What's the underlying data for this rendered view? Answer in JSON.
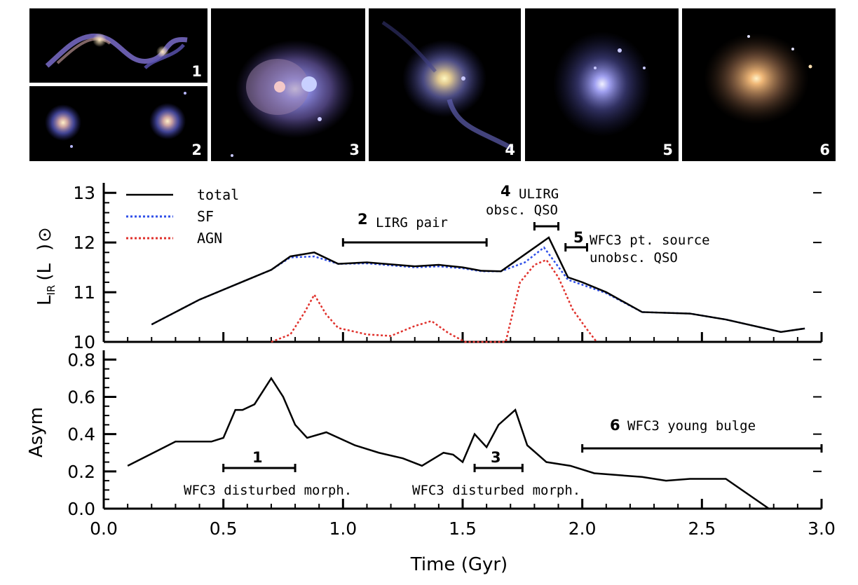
{
  "panels": [
    {
      "label": "1"
    },
    {
      "label": "2"
    },
    {
      "label": "3"
    },
    {
      "label": "4"
    },
    {
      "label": "5"
    },
    {
      "label": "6"
    }
  ],
  "colors": {
    "total": "#000000",
    "sf": "#2f4fe8",
    "agn": "#e0312c"
  },
  "chart_data": [
    {
      "type": "line",
      "ylabel": "L_IR (L_sun)",
      "ylabel_main": "L",
      "ylabel_sub": "IR",
      "ylabel_unit_open": "(L",
      "ylabel_unit_close": ")",
      "xlim": [
        0.0,
        3.0
      ],
      "ylim": [
        10.0,
        13.2
      ],
      "yticks": [
        "10",
        "11",
        "12",
        "13"
      ],
      "legend": [
        "total",
        "SF",
        "AGN"
      ],
      "series": [
        {
          "name": "total",
          "x": [
            0.2,
            0.3,
            0.4,
            0.5,
            0.6,
            0.7,
            0.78,
            0.88,
            0.98,
            1.1,
            1.3,
            1.4,
            1.5,
            1.58,
            1.66,
            1.86,
            1.94,
            2.0,
            2.1,
            2.25,
            2.45,
            2.6,
            2.83,
            2.93
          ],
          "y": [
            10.35,
            10.6,
            10.85,
            11.05,
            11.25,
            11.45,
            11.72,
            11.8,
            11.57,
            11.6,
            11.52,
            11.55,
            11.5,
            11.43,
            11.42,
            12.1,
            11.3,
            11.2,
            11.0,
            10.6,
            10.57,
            10.45,
            10.2,
            10.27
          ]
        },
        {
          "name": "SF",
          "x": [
            0.2,
            0.3,
            0.4,
            0.5,
            0.6,
            0.7,
            0.78,
            0.88,
            0.98,
            1.1,
            1.3,
            1.4,
            1.5,
            1.58,
            1.66,
            1.76,
            1.84,
            1.94,
            2.0,
            2.1,
            2.25,
            2.45,
            2.6,
            2.83,
            2.93
          ],
          "y": [
            10.35,
            10.6,
            10.85,
            11.05,
            11.25,
            11.45,
            11.7,
            11.72,
            11.57,
            11.58,
            11.5,
            11.52,
            11.48,
            11.42,
            11.42,
            11.6,
            11.9,
            11.25,
            11.15,
            10.98,
            10.6,
            10.57,
            10.45,
            10.2,
            10.27
          ]
        },
        {
          "name": "AGN",
          "x": [
            0.7,
            0.78,
            0.84,
            0.88,
            0.93,
            0.98,
            1.1,
            1.2,
            1.3,
            1.37,
            1.44,
            1.51,
            1.68,
            1.74,
            1.8,
            1.85,
            1.9,
            1.96,
            2.02,
            2.06
          ],
          "y": [
            10.0,
            10.15,
            10.6,
            10.95,
            10.55,
            10.28,
            10.15,
            10.12,
            10.32,
            10.42,
            10.18,
            10.0,
            10.0,
            11.2,
            11.55,
            11.65,
            11.3,
            10.65,
            10.25,
            10.0
          ]
        }
      ],
      "annotations": [
        {
          "num": "2",
          "text": "LIRG pair",
          "range": [
            1.0,
            1.6
          ]
        },
        {
          "num": "4",
          "text": "ULIRG",
          "text2": "obsc. QSO",
          "range": [
            1.8,
            1.9
          ]
        },
        {
          "num": "5",
          "text": "WFC3 pt. source",
          "text2": "unobsc. QSO",
          "range": [
            1.93,
            2.02
          ]
        }
      ]
    },
    {
      "type": "line",
      "ylabel": "Asym",
      "xlabel": "Time (Gyr)",
      "xlim": [
        0.0,
        3.0
      ],
      "ylim": [
        0.0,
        0.85
      ],
      "yticks": [
        "0.0",
        "0.2",
        "0.4",
        "0.6",
        "0.8"
      ],
      "xticks": [
        "0.0",
        "0.5",
        "1.0",
        "1.5",
        "2.0",
        "2.5",
        "3.0"
      ],
      "series": [
        {
          "name": "Asym",
          "x": [
            0.1,
            0.3,
            0.45,
            0.5,
            0.55,
            0.58,
            0.63,
            0.7,
            0.75,
            0.8,
            0.85,
            0.93,
            1.05,
            1.15,
            1.25,
            1.33,
            1.42,
            1.46,
            1.5,
            1.55,
            1.6,
            1.65,
            1.72,
            1.77,
            1.85,
            1.95,
            2.05,
            2.15,
            2.25,
            2.35,
            2.45,
            2.6,
            2.78
          ],
          "y": [
            0.23,
            0.36,
            0.36,
            0.38,
            0.53,
            0.53,
            0.56,
            0.7,
            0.6,
            0.45,
            0.38,
            0.41,
            0.34,
            0.3,
            0.27,
            0.23,
            0.3,
            0.29,
            0.25,
            0.4,
            0.33,
            0.45,
            0.53,
            0.34,
            0.25,
            0.23,
            0.19,
            0.18,
            0.17,
            0.15,
            0.16,
            0.16,
            0.0
          ]
        }
      ],
      "annotations": [
        {
          "num": "1",
          "text": "WFC3 disturbed morph.",
          "range": [
            0.5,
            0.8
          ]
        },
        {
          "num": "3",
          "text": "WFC3 disturbed morph.",
          "range": [
            1.55,
            1.75
          ]
        },
        {
          "num": "6",
          "text": "WFC3 young bulge",
          "range": [
            2.0,
            3.0
          ]
        }
      ]
    }
  ]
}
